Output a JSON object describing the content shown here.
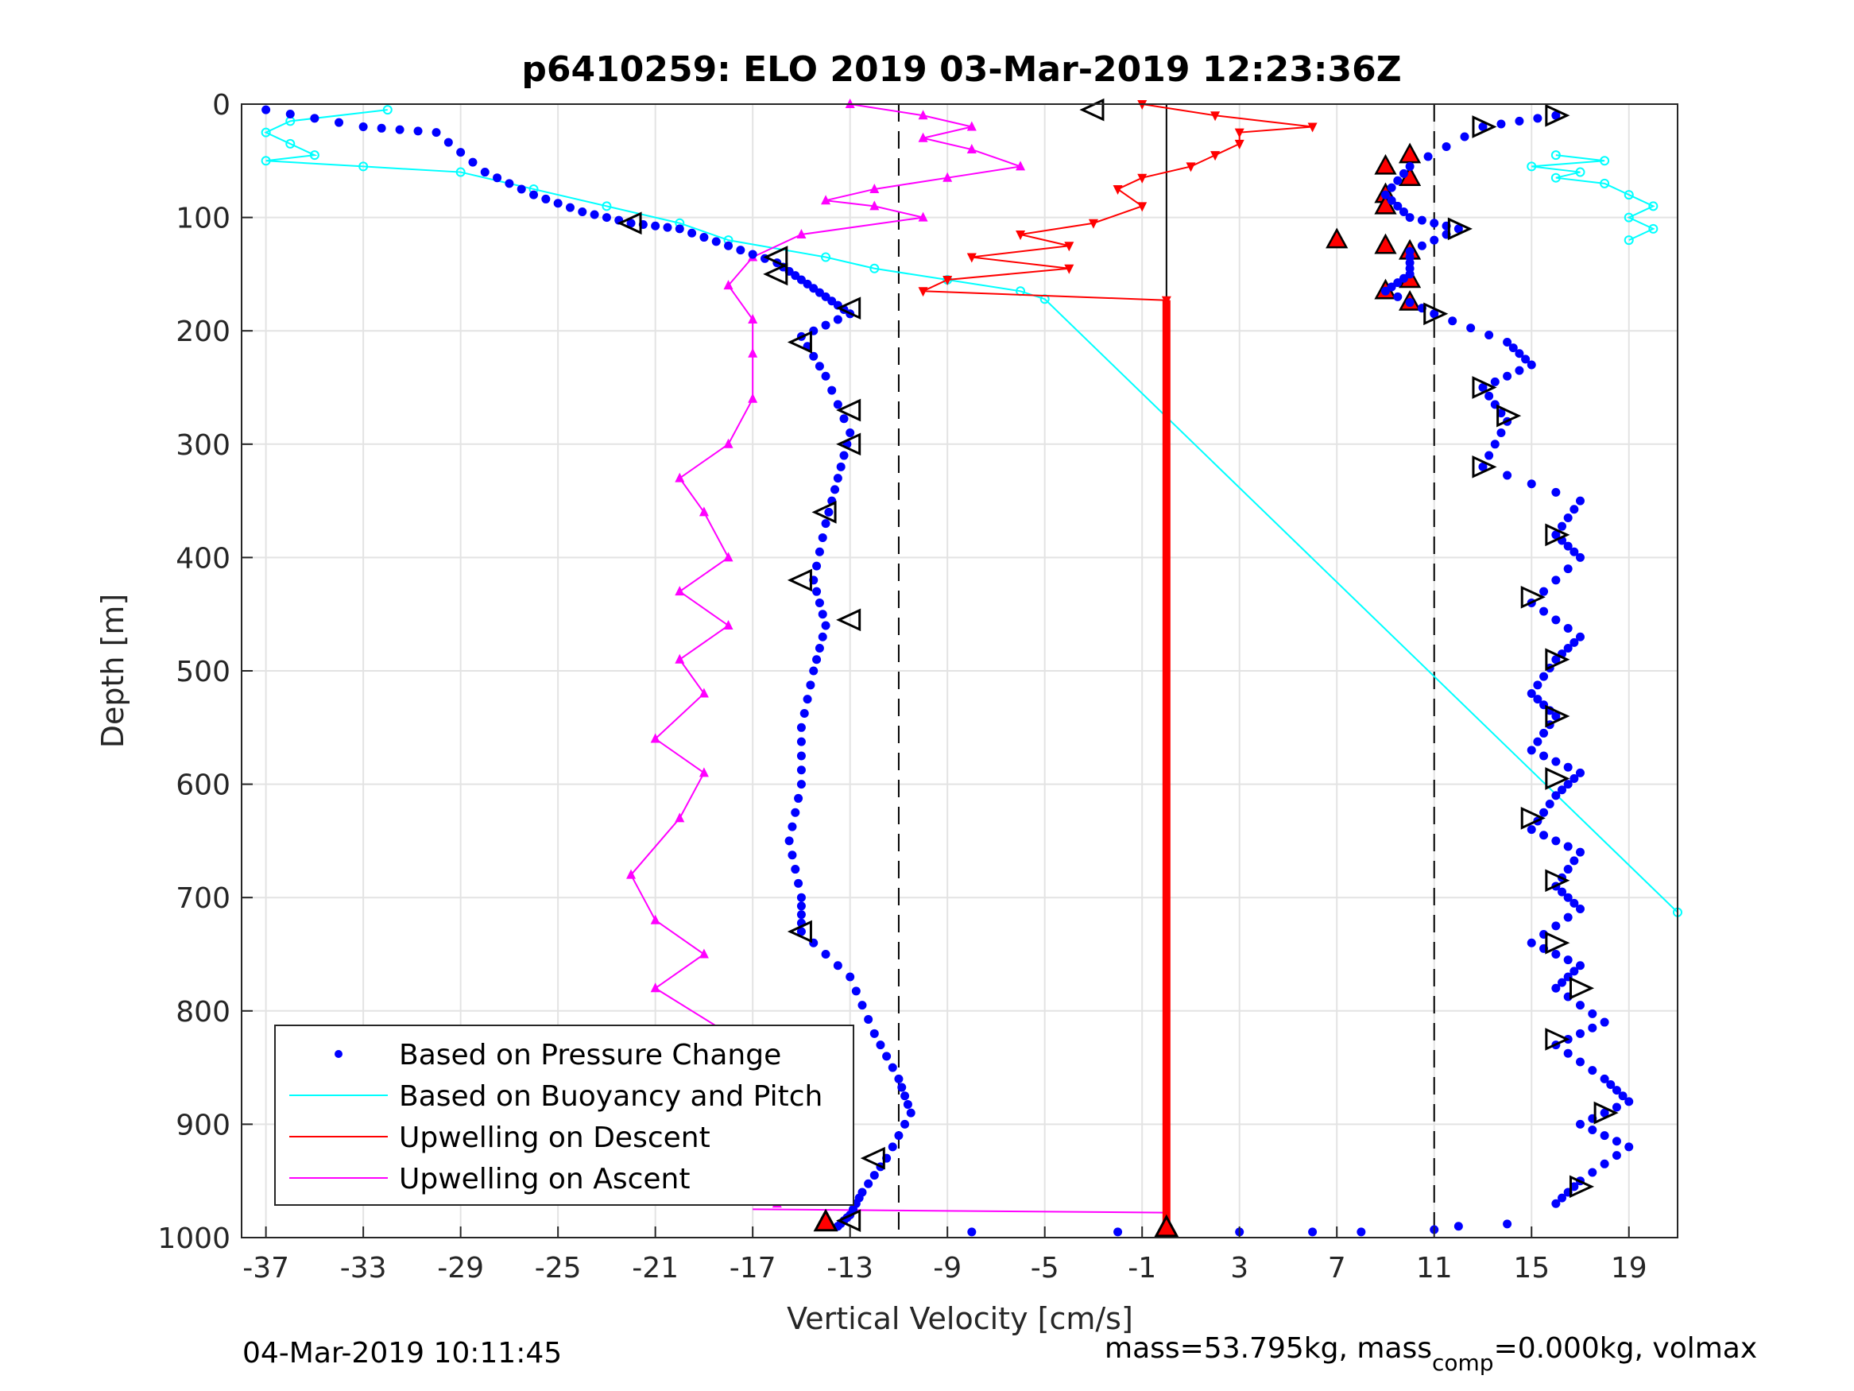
{
  "chart_data": {
    "type": "scatter",
    "title": "p6410259: ELO 2019 03-Mar-2019 12:23:36Z",
    "xlabel": "Vertical Velocity [cm/s]",
    "ylabel": "Depth [m]",
    "xlim": [
      -38,
      21
    ],
    "ylim": [
      0,
      1000
    ],
    "y_reversed": true,
    "grid": true,
    "x_ticks": [
      -37,
      -33,
      -29,
      -25,
      -21,
      -17,
      -13,
      -9,
      -5,
      -1,
      3,
      7,
      11,
      15,
      19
    ],
    "y_ticks": [
      0,
      100,
      200,
      300,
      400,
      500,
      600,
      700,
      800,
      900,
      1000
    ],
    "reference_lines": {
      "solid_x": 0,
      "dashed_x": [
        -11,
        11
      ]
    },
    "legend": {
      "position": "bottom-left",
      "entries": [
        {
          "label": "Based on Pressure Change",
          "color": "#0000ff",
          "style": "dot"
        },
        {
          "label": "Based on Buoyancy and Pitch",
          "color": "#00ffff",
          "style": "line"
        },
        {
          "label": "Upwelling on Descent",
          "color": "#ff0000",
          "style": "line"
        },
        {
          "label": "Upwelling on Ascent",
          "color": "#ff00ff",
          "style": "line"
        }
      ]
    },
    "series": [
      {
        "name": "Based on Pressure Change",
        "color": "#0000ff",
        "descent": [
          [
            -37,
            5
          ],
          [
            -33,
            20
          ],
          [
            -30,
            25
          ],
          [
            -28,
            60
          ],
          [
            -26,
            80
          ],
          [
            -24,
            95
          ],
          [
            -22,
            105
          ],
          [
            -20,
            110
          ],
          [
            -18,
            125
          ],
          [
            -16,
            140
          ],
          [
            -15,
            155
          ],
          [
            -14,
            170
          ],
          [
            -13,
            185
          ],
          [
            -15,
            205
          ],
          [
            -14,
            240
          ],
          [
            -13,
            290
          ],
          [
            -13.5,
            330
          ],
          [
            -14,
            370
          ],
          [
            -14.5,
            420
          ],
          [
            -14,
            460
          ],
          [
            -14.5,
            500
          ],
          [
            -15,
            550
          ],
          [
            -15,
            600
          ],
          [
            -15.5,
            650
          ],
          [
            -15,
            700
          ],
          [
            -15,
            730
          ],
          [
            -13,
            770
          ],
          [
            -12,
            820
          ],
          [
            -11,
            860
          ],
          [
            -10.5,
            890
          ],
          [
            -11.5,
            930
          ],
          [
            -12.5,
            960
          ],
          [
            -13,
            980
          ],
          [
            -13.5,
            990
          ]
        ],
        "ascent": [
          [
            16,
            10
          ],
          [
            13,
            20
          ],
          [
            10,
            55
          ],
          [
            9,
            80
          ],
          [
            10,
            100
          ],
          [
            12,
            110
          ],
          [
            10,
            130
          ],
          [
            10,
            150
          ],
          [
            9,
            165
          ],
          [
            11,
            185
          ],
          [
            14,
            210
          ],
          [
            15,
            230
          ],
          [
            13,
            250
          ],
          [
            14,
            280
          ],
          [
            13,
            320
          ],
          [
            17,
            350
          ],
          [
            16,
            380
          ],
          [
            17,
            400
          ],
          [
            15,
            440
          ],
          [
            17,
            470
          ],
          [
            16,
            490
          ],
          [
            15,
            520
          ],
          [
            16,
            540
          ],
          [
            15,
            570
          ],
          [
            17,
            590
          ],
          [
            16,
            610
          ],
          [
            15,
            640
          ],
          [
            17,
            660
          ],
          [
            16,
            690
          ],
          [
            17,
            710
          ],
          [
            15,
            740
          ],
          [
            17,
            760
          ],
          [
            16,
            780
          ],
          [
            18,
            810
          ],
          [
            16,
            830
          ],
          [
            18,
            860
          ],
          [
            19,
            880
          ],
          [
            17,
            900
          ],
          [
            19,
            920
          ],
          [
            17,
            950
          ],
          [
            16,
            970
          ]
        ],
        "bottom": [
          [
            -8,
            995
          ],
          [
            -2,
            995
          ],
          [
            0,
            995
          ],
          [
            3,
            995
          ],
          [
            6,
            995
          ],
          [
            8,
            995
          ],
          [
            11,
            993
          ],
          [
            12,
            990
          ],
          [
            14,
            988
          ]
        ]
      },
      {
        "name": "Based on Buoyancy and Pitch",
        "color": "#00ffff",
        "points": [
          [
            -32,
            5
          ],
          [
            -36,
            15
          ],
          [
            -37,
            25
          ],
          [
            -36,
            35
          ],
          [
            -35,
            45
          ],
          [
            -37,
            50
          ],
          [
            -33,
            55
          ],
          [
            -29,
            60
          ],
          [
            -26,
            75
          ],
          [
            -23,
            90
          ],
          [
            -20,
            105
          ],
          [
            -18,
            120
          ],
          [
            -14,
            135
          ],
          [
            -12,
            145
          ],
          [
            -9,
            155
          ],
          [
            -6,
            165
          ],
          [
            -5,
            172
          ],
          [
            21,
            713
          ]
        ],
        "ascent_cluster": [
          [
            16,
            45
          ],
          [
            18,
            50
          ],
          [
            15,
            55
          ],
          [
            17,
            60
          ],
          [
            16,
            65
          ],
          [
            18,
            70
          ],
          [
            19,
            80
          ],
          [
            20,
            90
          ],
          [
            19,
            100
          ],
          [
            20,
            110
          ],
          [
            19,
            120
          ]
        ]
      },
      {
        "name": "Upwelling on Descent",
        "color": "#ff0000",
        "points": [
          [
            -1,
            0
          ],
          [
            2,
            10
          ],
          [
            6,
            20
          ],
          [
            3,
            25
          ],
          [
            3,
            35
          ],
          [
            2,
            45
          ],
          [
            1,
            55
          ],
          [
            -1,
            65
          ],
          [
            -2,
            75
          ],
          [
            -1,
            90
          ],
          [
            -3,
            105
          ],
          [
            -6,
            115
          ],
          [
            -4,
            125
          ],
          [
            -8,
            135
          ],
          [
            -4,
            145
          ],
          [
            -9,
            155
          ],
          [
            -10,
            165
          ],
          [
            0,
            173
          ]
        ],
        "ascent_markers": [
          [
            10,
            45
          ],
          [
            9,
            55
          ],
          [
            10,
            65
          ],
          [
            9,
            80
          ],
          [
            9,
            90
          ],
          [
            7,
            120
          ],
          [
            9,
            125
          ],
          [
            10,
            130
          ],
          [
            9,
            165
          ],
          [
            10,
            155
          ],
          [
            10,
            175
          ]
        ],
        "surface_column": {
          "x": 0,
          "from": 173,
          "to": 1000
        }
      },
      {
        "name": "Upwelling on Ascent",
        "color": "#ff00ff",
        "points": [
          [
            -13,
            0
          ],
          [
            -10,
            10
          ],
          [
            -8,
            20
          ],
          [
            -10,
            30
          ],
          [
            -8,
            40
          ],
          [
            -6,
            55
          ],
          [
            -9,
            65
          ],
          [
            -12,
            75
          ],
          [
            -14,
            85
          ],
          [
            -12,
            90
          ],
          [
            -10,
            100
          ],
          [
            -15,
            115
          ],
          [
            -17,
            135
          ],
          [
            -18,
            160
          ],
          [
            -17,
            190
          ],
          [
            -17,
            220
          ],
          [
            -17,
            260
          ],
          [
            -18,
            300
          ],
          [
            -20,
            330
          ],
          [
            -19,
            360
          ],
          [
            -18,
            400
          ],
          [
            -20,
            430
          ],
          [
            -18,
            460
          ],
          [
            -20,
            490
          ],
          [
            -19,
            520
          ],
          [
            -21,
            560
          ],
          [
            -19,
            590
          ],
          [
            -20,
            630
          ],
          [
            -22,
            680
          ],
          [
            -21,
            720
          ],
          [
            -19,
            750
          ],
          [
            -21,
            780
          ],
          [
            -18,
            820
          ],
          [
            -20,
            860
          ],
          [
            -17,
            880
          ],
          [
            -19,
            910
          ],
          [
            -17,
            940
          ],
          [
            -16,
            970
          ]
        ],
        "bottom_link": [
          [
            -17,
            975
          ],
          [
            0,
            978
          ]
        ]
      }
    ],
    "markers": {
      "open_triangles_descent": [
        [
          -3,
          5
        ],
        [
          -22,
          105
        ],
        [
          -16,
          135
        ],
        [
          -16,
          150
        ],
        [
          -13,
          180
        ],
        [
          -15,
          210
        ],
        [
          -13,
          270
        ],
        [
          -13,
          300
        ],
        [
          -14,
          360
        ],
        [
          -15,
          420
        ],
        [
          -13,
          455
        ],
        [
          -15,
          730
        ],
        [
          -12,
          930
        ],
        [
          -13,
          985
        ]
      ],
      "open_triangles_ascent": [
        [
          16,
          10
        ],
        [
          13,
          20
        ],
        [
          12,
          110
        ],
        [
          11,
          185
        ],
        [
          13,
          250
        ],
        [
          14,
          275
        ],
        [
          13,
          320
        ],
        [
          16,
          380
        ],
        [
          15,
          435
        ],
        [
          16,
          490
        ],
        [
          16,
          540
        ],
        [
          16,
          595
        ],
        [
          15,
          630
        ],
        [
          16,
          685
        ],
        [
          16,
          740
        ],
        [
          17,
          780
        ],
        [
          16,
          825
        ],
        [
          18,
          890
        ],
        [
          17,
          955
        ]
      ],
      "filled_red_triangles": [
        [
          -14,
          990
        ],
        [
          0,
          995
        ]
      ]
    },
    "footer": {
      "left": "04-Mar-2019 10:11:45",
      "right_pre": "mass=53.795kg, mass",
      "right_sub": "comp",
      "right_post": "=0.000kg, volmax"
    }
  }
}
